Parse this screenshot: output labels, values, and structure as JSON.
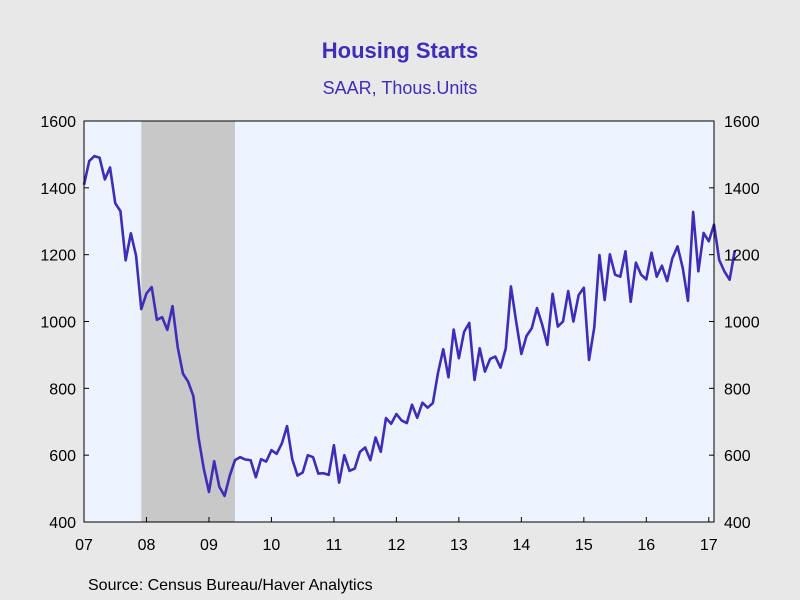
{
  "colors": {
    "background": "#e8e8e8",
    "plot_area": "#eef4ff",
    "recession": "#c8c8c8",
    "line": "#3f2db8",
    "title": "#3f2db8"
  },
  "source_text": "Source:  Census Bureau/Haver Analytics",
  "chart_data": {
    "type": "line",
    "title": "Housing Starts",
    "subtitle": "SAAR, Thous.Units",
    "xlabel": "",
    "ylabel": "",
    "ylim": [
      400,
      1600
    ],
    "yticks": [
      400,
      600,
      800,
      1000,
      1200,
      1400,
      1600
    ],
    "y_axis_sides": "left and right",
    "x_tick_labels": [
      "07",
      "08",
      "09",
      "10",
      "11",
      "12",
      "13",
      "14",
      "15",
      "16",
      "17"
    ],
    "x_range": [
      "2007-01",
      "2017-02"
    ],
    "grid": false,
    "legend": "none",
    "shaded_regions": [
      {
        "start": "2007-12",
        "end": "2009-06",
        "label": ""
      }
    ],
    "series": [
      {
        "x_start": "2007-01",
        "frequency": "monthly",
        "values": [
          1409,
          1480,
          1495,
          1490,
          1425,
          1461,
          1354,
          1330,
          1183,
          1264,
          1197,
          1037,
          1084,
          1103,
          1005,
          1013,
          975,
          1046,
          923,
          844,
          820,
          777,
          652,
          560,
          490,
          582,
          505,
          478,
          539,
          585,
          594,
          587,
          585,
          534,
          588,
          581,
          615,
          604,
          635,
          687,
          588,
          539,
          548,
          600,
          594,
          545,
          546,
          541,
          630,
          518,
          600,
          553,
          560,
          610,
          623,
          585,
          653,
          610,
          711,
          694,
          723,
          704,
          696,
          751,
          712,
          757,
          742,
          756,
          847,
          917,
          833,
          976,
          890,
          969,
          996,
          825,
          920,
          850,
          888,
          895,
          862,
          919,
          1105,
          1000,
          903,
          957,
          980,
          1040,
          991,
          930,
          1083,
          985,
          1000,
          1091,
          1000,
          1079,
          1101,
          885,
          982,
          1199,
          1064,
          1201,
          1140,
          1134,
          1210,
          1059,
          1176,
          1140,
          1126,
          1206,
          1134,
          1167,
          1121,
          1189,
          1225,
          1160,
          1062,
          1328,
          1150,
          1265,
          1240,
          1290,
          1184,
          1150,
          1125,
          1213
        ]
      }
    ]
  }
}
